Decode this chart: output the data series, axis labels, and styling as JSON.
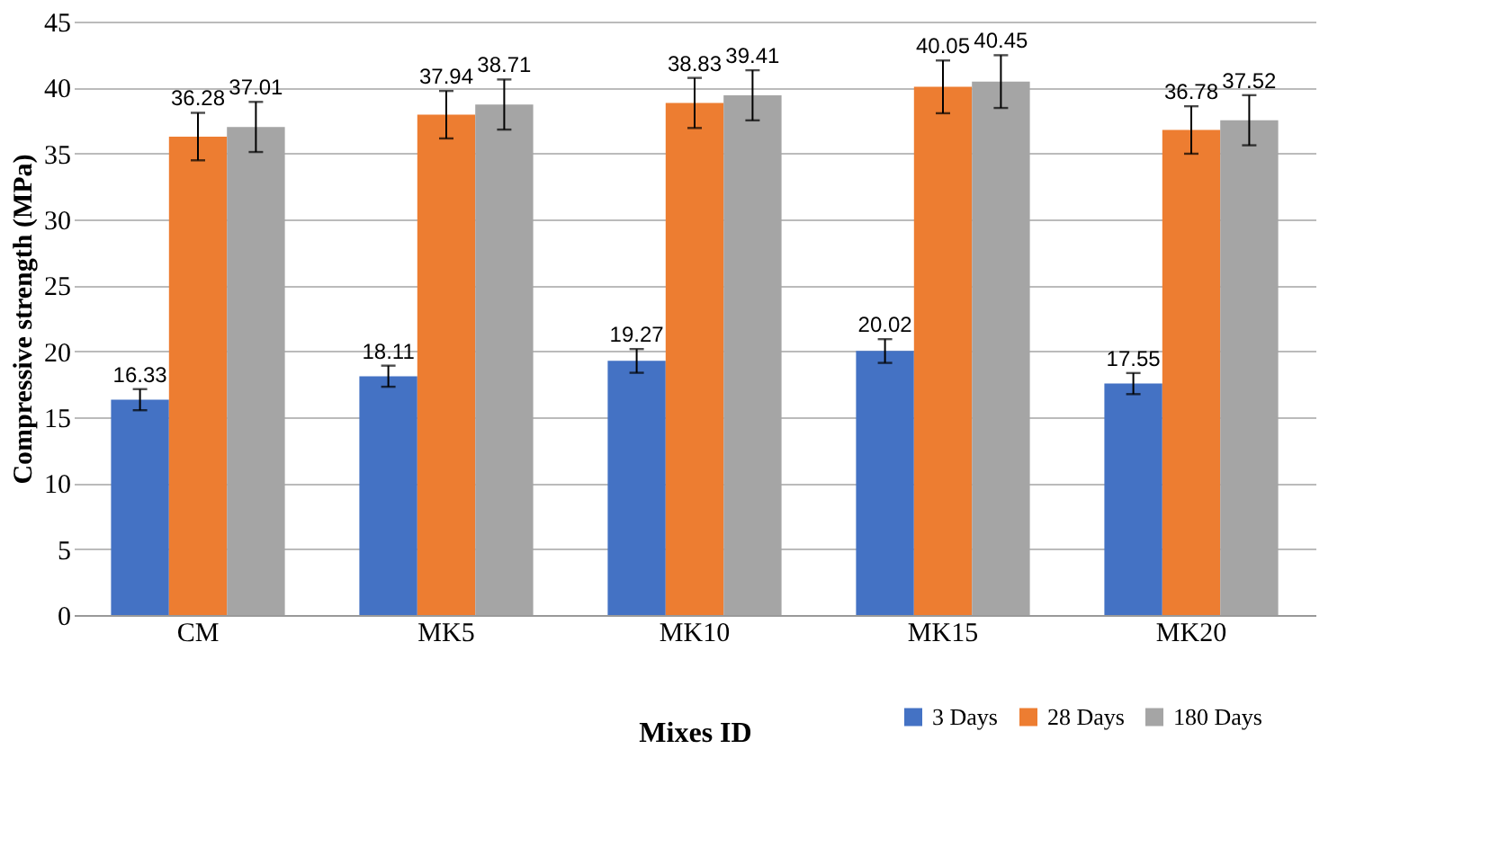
{
  "chart_data": {
    "type": "bar",
    "xlabel": "Mixes ID",
    "ylabel": "Compressive strength (MPa)",
    "categories": [
      "CM",
      "MK5",
      "MK10",
      "MK15",
      "MK20"
    ],
    "series": [
      {
        "name": "3 Days",
        "color": "#4472c4",
        "values": [
          16.33,
          18.11,
          19.27,
          20.02,
          17.55
        ],
        "errors": [
          0.8,
          0.8,
          0.9,
          0.9,
          0.8
        ]
      },
      {
        "name": "28 Days",
        "color": "#ed7d31",
        "values": [
          36.28,
          37.94,
          38.83,
          40.05,
          36.78
        ],
        "errors": [
          1.8,
          1.8,
          1.9,
          2.0,
          1.8
        ]
      },
      {
        "name": "180 Days",
        "color": "#a5a5a5",
        "values": [
          37.01,
          38.71,
          39.41,
          40.45,
          37.52
        ],
        "errors": [
          1.9,
          1.9,
          1.9,
          2.0,
          1.9
        ]
      }
    ],
    "ylim": [
      0,
      45
    ],
    "yticks": [
      0,
      5,
      10,
      15,
      20,
      25,
      30,
      35,
      40,
      45
    ],
    "grid": "y",
    "legend": "bottom right",
    "data_labels": true
  }
}
